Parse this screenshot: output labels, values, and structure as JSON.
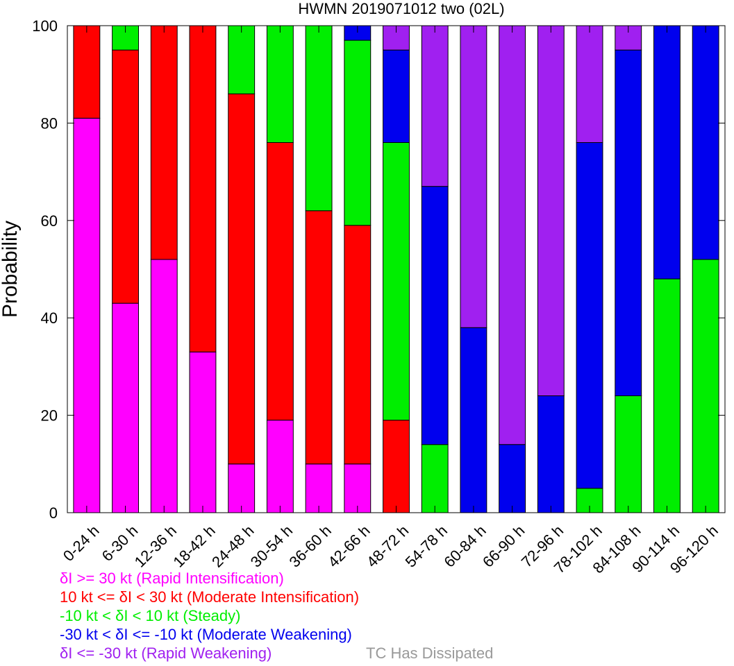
{
  "chart_data": {
    "type": "bar",
    "stacked": true,
    "title": "HWMN 2019071012 two (02L)",
    "xlabel": "",
    "ylabel": "Probability",
    "ylim": [
      0,
      100
    ],
    "yticks": [
      0,
      20,
      40,
      60,
      80,
      100
    ],
    "grid": false,
    "categories": [
      "0-24 h",
      "6-30 h",
      "12-36 h",
      "18-42 h",
      "24-48 h",
      "30-54 h",
      "36-60 h",
      "42-66 h",
      "48-72 h",
      "54-78 h",
      "60-84 h",
      "66-90 h",
      "72-96 h",
      "78-102 h",
      "84-108 h",
      "90-114 h",
      "96-120 h"
    ],
    "series": [
      {
        "name": "δI >= 30 kt (Rapid Intensification)",
        "color": "#ff00ff",
        "values": [
          81,
          43,
          52,
          33,
          10,
          19,
          10,
          10,
          0,
          0,
          0,
          0,
          0,
          0,
          0,
          0,
          0
        ]
      },
      {
        "name": "10 kt <= δI < 30 kt (Moderate Intensification)",
        "color": "#ff0000",
        "values": [
          19,
          52,
          48,
          67,
          76,
          57,
          52,
          49,
          19,
          0,
          0,
          0,
          0,
          0,
          0,
          0,
          0
        ]
      },
      {
        "name": "-10 kt < δI < 10 kt (Steady)",
        "color": "#00ee00",
        "values": [
          0,
          5,
          0,
          0,
          14,
          24,
          38,
          38,
          57,
          14,
          0,
          0,
          0,
          5,
          24,
          48,
          52
        ]
      },
      {
        "name": "-30 kt < δI <= -10 kt (Moderate Weakening)",
        "color": "#0000ee",
        "values": [
          0,
          0,
          0,
          0,
          0,
          0,
          0,
          3,
          19,
          53,
          38,
          14,
          24,
          71,
          71,
          52,
          48
        ]
      },
      {
        "name": "δI <= -30 kt (Rapid Weakening)",
        "color": "#a020f0",
        "values": [
          0,
          0,
          0,
          0,
          0,
          0,
          0,
          0,
          5,
          33,
          62,
          86,
          76,
          24,
          5,
          0,
          0
        ]
      }
    ],
    "dissipated": {
      "name": "TC Has Dissipated",
      "color": "#999999",
      "values": [
        0,
        0,
        0,
        0,
        0,
        0,
        0,
        0,
        0,
        0,
        0,
        0,
        0,
        0,
        0,
        0,
        0
      ]
    }
  }
}
